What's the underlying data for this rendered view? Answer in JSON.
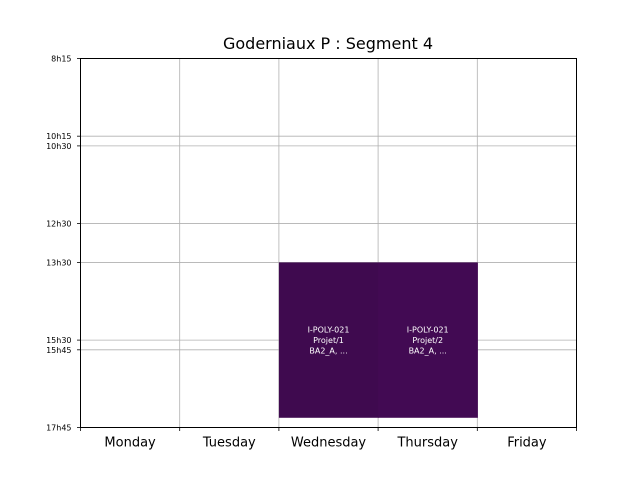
{
  "chart_data": {
    "type": "timetable",
    "title": "Goderniaux P : Segment 4",
    "days": [
      "Monday",
      "Tuesday",
      "Wednesday",
      "Thursday",
      "Friday"
    ],
    "time_ticks": [
      "8h15",
      "10h15",
      "10h30",
      "12h30",
      "13h30",
      "15h30",
      "15h45",
      "17h45"
    ],
    "time_range": [
      "8h15",
      "17h45"
    ],
    "grid": true,
    "events": [
      {
        "day": "Wednesday",
        "start": "13h30",
        "end": "17h30",
        "lines": [
          "I-POLY-021",
          "Projet/1",
          "BA2_A, ..."
        ],
        "color": "#3f0a4f"
      },
      {
        "day": "Thursday",
        "start": "13h30",
        "end": "17h30",
        "lines": [
          "I-POLY-021",
          "Projet/2",
          "BA2_A, ..."
        ],
        "color": "#420a53"
      }
    ]
  }
}
